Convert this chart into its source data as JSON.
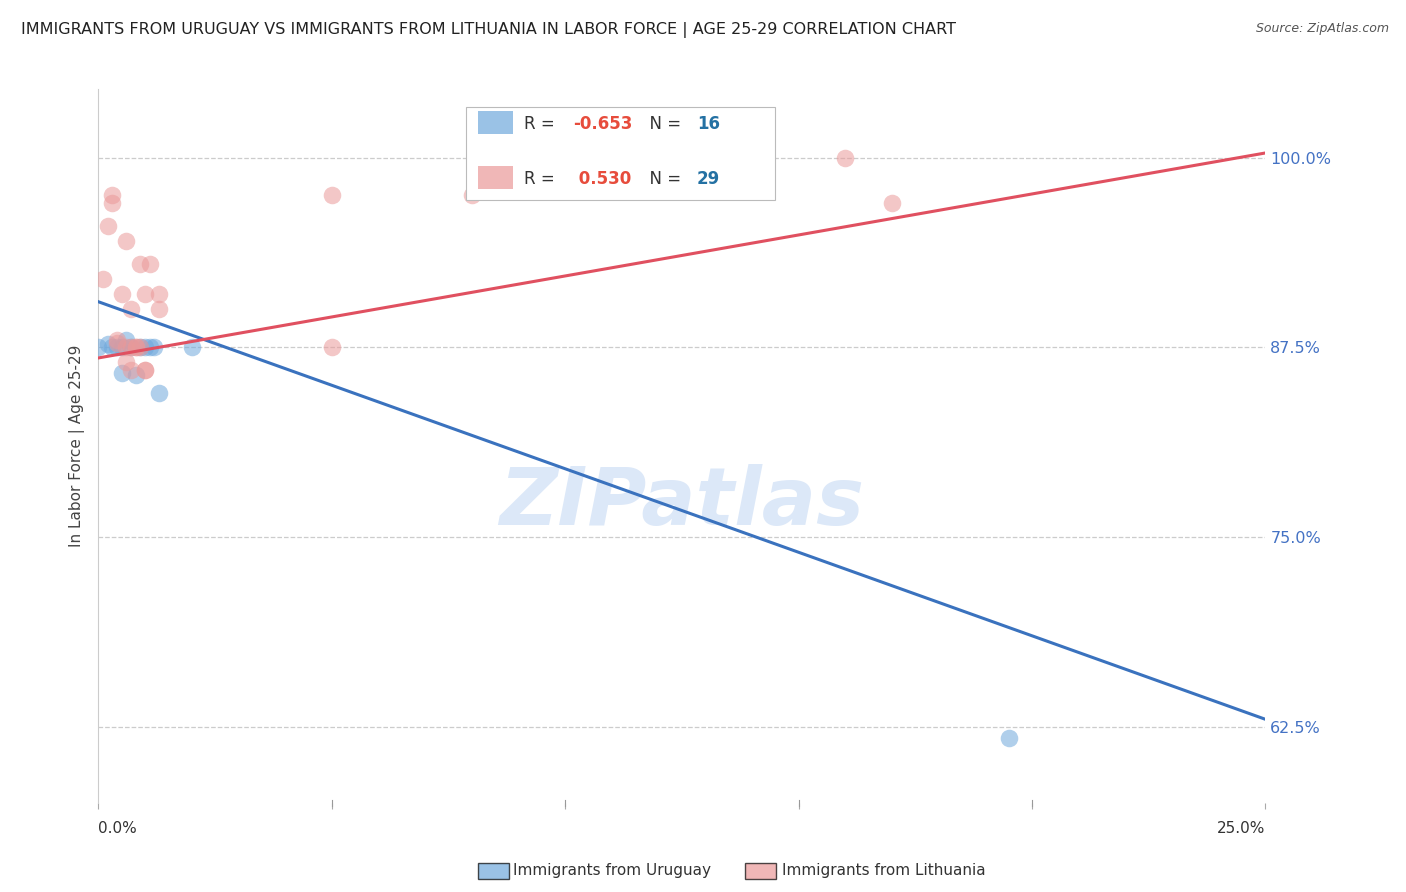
{
  "title": "IMMIGRANTS FROM URUGUAY VS IMMIGRANTS FROM LITHUANIA IN LABOR FORCE | AGE 25-29 CORRELATION CHART",
  "source": "Source: ZipAtlas.com",
  "ylabel": "In Labor Force | Age 25-29",
  "ytick_labels": [
    "62.5%",
    "75.0%",
    "87.5%",
    "100.0%"
  ],
  "ytick_values": [
    0.625,
    0.75,
    0.875,
    1.0
  ],
  "xlim": [
    0.0,
    0.25
  ],
  "ylim": [
    0.575,
    1.045
  ],
  "uruguay_color": "#6fa8dc",
  "lithuania_color": "#ea9999",
  "uruguay_label": "Immigrants from Uruguay",
  "lithuania_label": "Immigrants from Lithuania",
  "watermark": "ZIPatlas",
  "uruguay_points": [
    [
      0.0,
      0.875
    ],
    [
      0.002,
      0.877
    ],
    [
      0.003,
      0.875
    ],
    [
      0.004,
      0.875
    ],
    [
      0.005,
      0.875
    ],
    [
      0.005,
      0.858
    ],
    [
      0.006,
      0.88
    ],
    [
      0.007,
      0.875
    ],
    [
      0.008,
      0.857
    ],
    [
      0.009,
      0.875
    ],
    [
      0.01,
      0.875
    ],
    [
      0.011,
      0.875
    ],
    [
      0.012,
      0.875
    ],
    [
      0.013,
      0.845
    ],
    [
      0.02,
      0.875
    ],
    [
      0.195,
      0.618
    ]
  ],
  "lithuania_points": [
    [
      0.001,
      0.92
    ],
    [
      0.002,
      0.955
    ],
    [
      0.003,
      0.97
    ],
    [
      0.003,
      0.975
    ],
    [
      0.004,
      0.88
    ],
    [
      0.004,
      0.878
    ],
    [
      0.005,
      0.91
    ],
    [
      0.006,
      0.945
    ],
    [
      0.006,
      0.875
    ],
    [
      0.006,
      0.865
    ],
    [
      0.007,
      0.9
    ],
    [
      0.007,
      0.875
    ],
    [
      0.007,
      0.86
    ],
    [
      0.008,
      0.875
    ],
    [
      0.008,
      0.875
    ],
    [
      0.009,
      0.875
    ],
    [
      0.009,
      0.93
    ],
    [
      0.01,
      0.86
    ],
    [
      0.01,
      0.91
    ],
    [
      0.01,
      0.86
    ],
    [
      0.011,
      0.93
    ],
    [
      0.013,
      0.91
    ],
    [
      0.013,
      0.9
    ],
    [
      0.05,
      0.975
    ],
    [
      0.05,
      0.875
    ],
    [
      0.08,
      0.975
    ],
    [
      0.085,
      0.999
    ],
    [
      0.17,
      0.97
    ],
    [
      0.16,
      1.0
    ]
  ],
  "blue_line": [
    [
      0.0,
      0.905
    ],
    [
      0.25,
      0.63
    ]
  ],
  "pink_line": [
    [
      0.0,
      0.868
    ],
    [
      0.25,
      1.003
    ]
  ],
  "background_color": "#ffffff",
  "grid_color": "#cccccc",
  "title_color": "#222222",
  "right_tick_color": "#4472c4",
  "ylabel_color": "#444444",
  "source_color": "#555555",
  "legend_R_color": "#c0392b",
  "legend_N_color": "#2471a3",
  "watermark_color": "#d6e4f7"
}
